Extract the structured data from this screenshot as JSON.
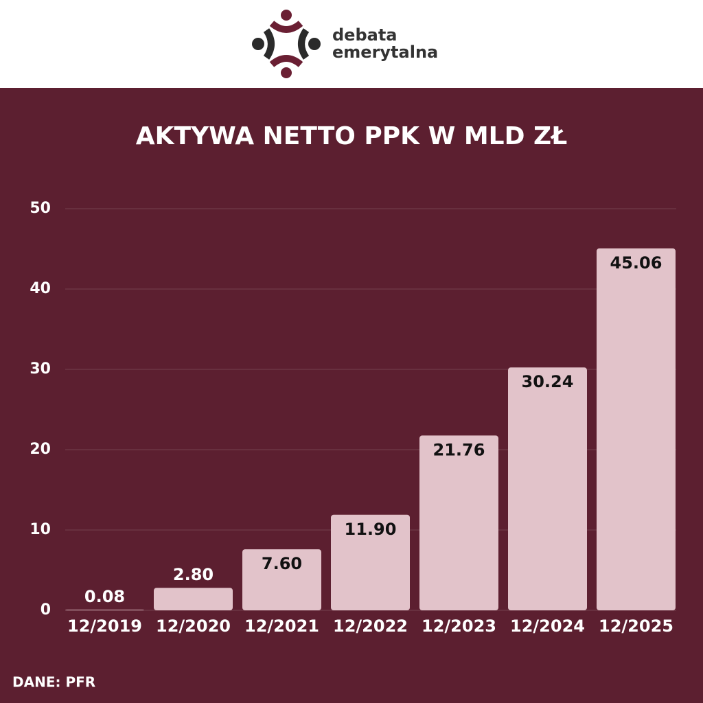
{
  "header": {
    "logo_line1": "debata",
    "logo_line2": "emerytalna"
  },
  "chart_data": {
    "type": "bar",
    "title": "AKTYWA NETTO PPK W MLD ZŁ",
    "categories": [
      "12/2019",
      "12/2020",
      "12/2021",
      "12/2022",
      "12/2023",
      "12/2024",
      "12/2025"
    ],
    "values": [
      0.08,
      2.8,
      7.6,
      11.9,
      21.76,
      30.24,
      45.06
    ],
    "value_labels": [
      "0.08",
      "2.80",
      "7.60",
      "11.90",
      "21.76",
      "30.24",
      "45.06"
    ],
    "color": "#e2c3ca",
    "ylim": [
      0,
      50
    ],
    "yticks": [
      0,
      10,
      20,
      30,
      40,
      50
    ],
    "grid": true,
    "source": "DANE: PFR"
  }
}
